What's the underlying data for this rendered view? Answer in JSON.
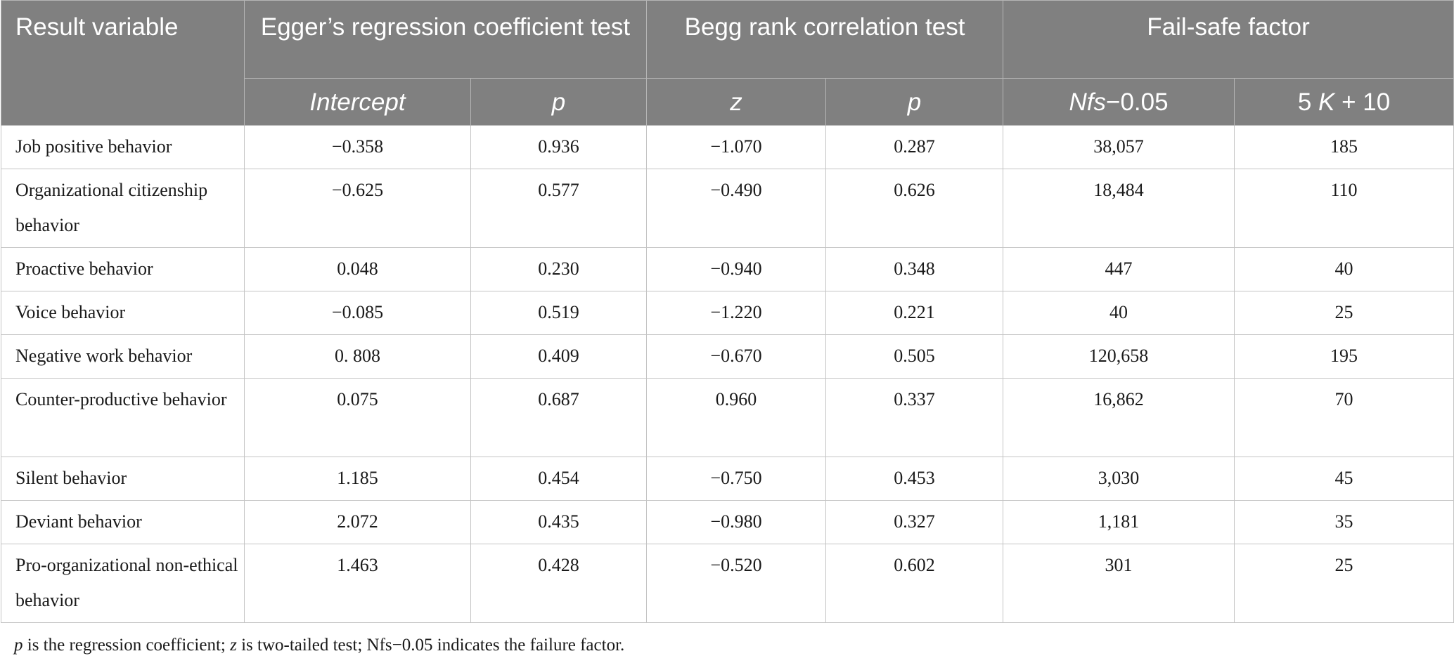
{
  "table": {
    "header": {
      "result_variable": "Result variable",
      "group_egger": "Egger’s regression coefficient test",
      "group_begg": "Begg rank correlation test",
      "group_failsafe": "Fail-safe factor",
      "sub_intercept": "Intercept",
      "sub_p1": "p",
      "sub_z": "z",
      "sub_p2": "p",
      "sub_nfs_italic": "Nfs",
      "sub_nfs_rest": "−0.05",
      "sub_5k_a": "5 ",
      "sub_5k_k": "K",
      "sub_5k_b": " + 10"
    },
    "rows": [
      {
        "label": "Job positive behavior",
        "intercept": "−0.358",
        "p_egger": "0.936",
        "z": "−1.070",
        "p_begg": "0.287",
        "nfs": "38,057",
        "k": "185",
        "tall": false
      },
      {
        "label": "Organizational citizenship behavior",
        "intercept": "−0.625",
        "p_egger": "0.577",
        "z": "−0.490",
        "p_begg": "0.626",
        "nfs": "18,484",
        "k": "110",
        "tall": true
      },
      {
        "label": "Proactive behavior",
        "intercept": "0.048",
        "p_egger": "0.230",
        "z": "−0.940",
        "p_begg": "0.348",
        "nfs": "447",
        "k": "40",
        "tall": false
      },
      {
        "label": "Voice behavior",
        "intercept": "−0.085",
        "p_egger": "0.519",
        "z": "−1.220",
        "p_begg": "0.221",
        "nfs": "40",
        "k": "25",
        "tall": false
      },
      {
        "label": "Negative work behavior",
        "intercept": "0. 808",
        "p_egger": "0.409",
        "z": "−0.670",
        "p_begg": "0.505",
        "nfs": "120,658",
        "k": "195",
        "tall": false
      },
      {
        "label": "Counter-productive behavior",
        "intercept": "0.075",
        "p_egger": "0.687",
        "z": "0.960",
        "p_begg": "0.337",
        "nfs": "16,862",
        "k": "70",
        "tall": true
      },
      {
        "label": "Silent behavior",
        "intercept": "1.185",
        "p_egger": "0.454",
        "z": "−0.750",
        "p_begg": "0.453",
        "nfs": "3,030",
        "k": "45",
        "tall": false
      },
      {
        "label": "Deviant behavior",
        "intercept": "2.072",
        "p_egger": "0.435",
        "z": "−0.980",
        "p_begg": "0.327",
        "nfs": "1,181",
        "k": "35",
        "tall": false
      },
      {
        "label": "Pro-organizational non-ethical behavior",
        "intercept": "1.463",
        "p_egger": "0.428",
        "z": "−0.520",
        "p_begg": "0.602",
        "nfs": "301",
        "k": "25",
        "tall": true
      }
    ]
  },
  "footnote": {
    "p_symbol": "p",
    "p_text": " is the regression coefficient; ",
    "z_symbol": "z",
    "z_text": " is two-tailed test; Nfs−0.05 indicates the failure factor."
  }
}
